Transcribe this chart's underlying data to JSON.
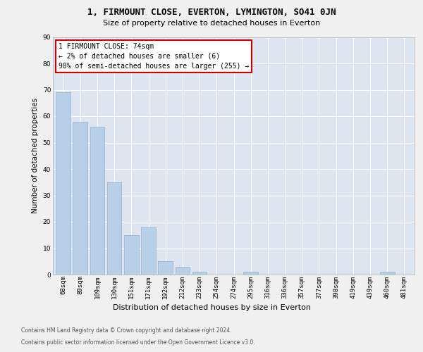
{
  "title1": "1, FIRMOUNT CLOSE, EVERTON, LYMINGTON, SO41 0JN",
  "title2": "Size of property relative to detached houses in Everton",
  "xlabel": "Distribution of detached houses by size in Everton",
  "ylabel": "Number of detached properties",
  "categories": [
    "68sqm",
    "89sqm",
    "109sqm",
    "130sqm",
    "151sqm",
    "171sqm",
    "192sqm",
    "212sqm",
    "233sqm",
    "254sqm",
    "274sqm",
    "295sqm",
    "316sqm",
    "336sqm",
    "357sqm",
    "377sqm",
    "398sqm",
    "419sqm",
    "439sqm",
    "460sqm",
    "481sqm"
  ],
  "values": [
    69,
    58,
    56,
    35,
    15,
    18,
    5,
    3,
    1,
    0,
    0,
    1,
    0,
    0,
    0,
    0,
    0,
    0,
    0,
    1,
    0
  ],
  "bar_color": "#b8cfe8",
  "bar_edge_color": "#90afd4",
  "annotation_text": "1 FIRMOUNT CLOSE: 74sqm\n← 2% of detached houses are smaller (6)\n98% of semi-detached houses are larger (255) →",
  "annotation_box_facecolor": "#ffffff",
  "annotation_box_edgecolor": "#cc0000",
  "ylim": [
    0,
    90
  ],
  "yticks": [
    0,
    10,
    20,
    30,
    40,
    50,
    60,
    70,
    80,
    90
  ],
  "plot_bg_color": "#dde6f0",
  "grid_color": "#ffffff",
  "fig_bg_color": "#f0f0f0",
  "footer1": "Contains HM Land Registry data © Crown copyright and database right 2024.",
  "footer2": "Contains public sector information licensed under the Open Government Licence v3.0.",
  "title1_fontsize": 9,
  "title2_fontsize": 8,
  "xlabel_fontsize": 8,
  "ylabel_fontsize": 7.5,
  "tick_fontsize": 6.5,
  "ann_fontsize": 7,
  "footer_fontsize": 5.5
}
